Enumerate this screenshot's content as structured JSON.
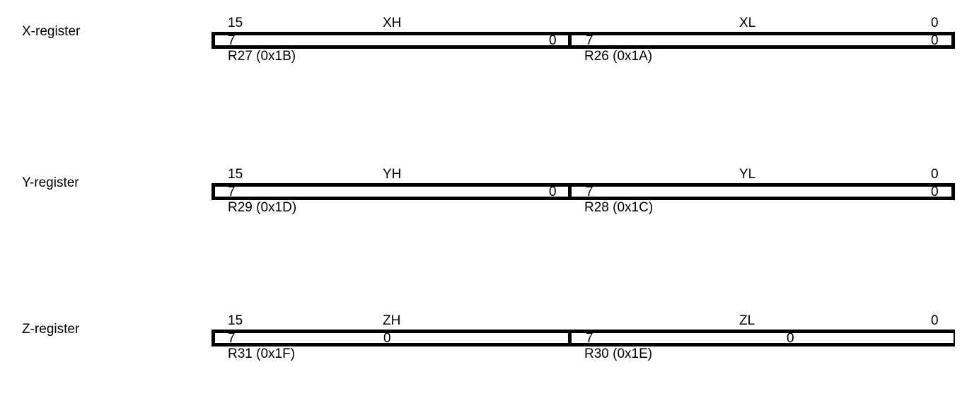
{
  "registers": [
    {
      "name": "X-register",
      "bit_high": "15",
      "bit_low": "0",
      "high_name": "XH",
      "low_name": "XL",
      "high_byte": {
        "msb": "7",
        "lsb": "0",
        "address": "R27 (0x1B)"
      },
      "low_byte": {
        "msb": "7",
        "lsb": "0",
        "address": "R26 (0x1A)"
      }
    },
    {
      "name": "Y-register",
      "bit_high": "15",
      "bit_low": "0",
      "high_name": "YH",
      "low_name": "YL",
      "high_byte": {
        "msb": "7",
        "lsb": "0",
        "address": "R29 (0x1D)"
      },
      "low_byte": {
        "msb": "7",
        "lsb": "0",
        "address": "R28 (0x1C)"
      }
    },
    {
      "name": "Z-register",
      "bit_high": "15",
      "bit_low": "0",
      "high_name": "ZH",
      "low_name": "ZL",
      "high_byte": {
        "msb": "7",
        "lsb": "0",
        "address": "R31 (0x1F)"
      },
      "low_byte": {
        "msb": "7",
        "lsb": "0",
        "address": "R30 (0x1E)"
      }
    }
  ]
}
